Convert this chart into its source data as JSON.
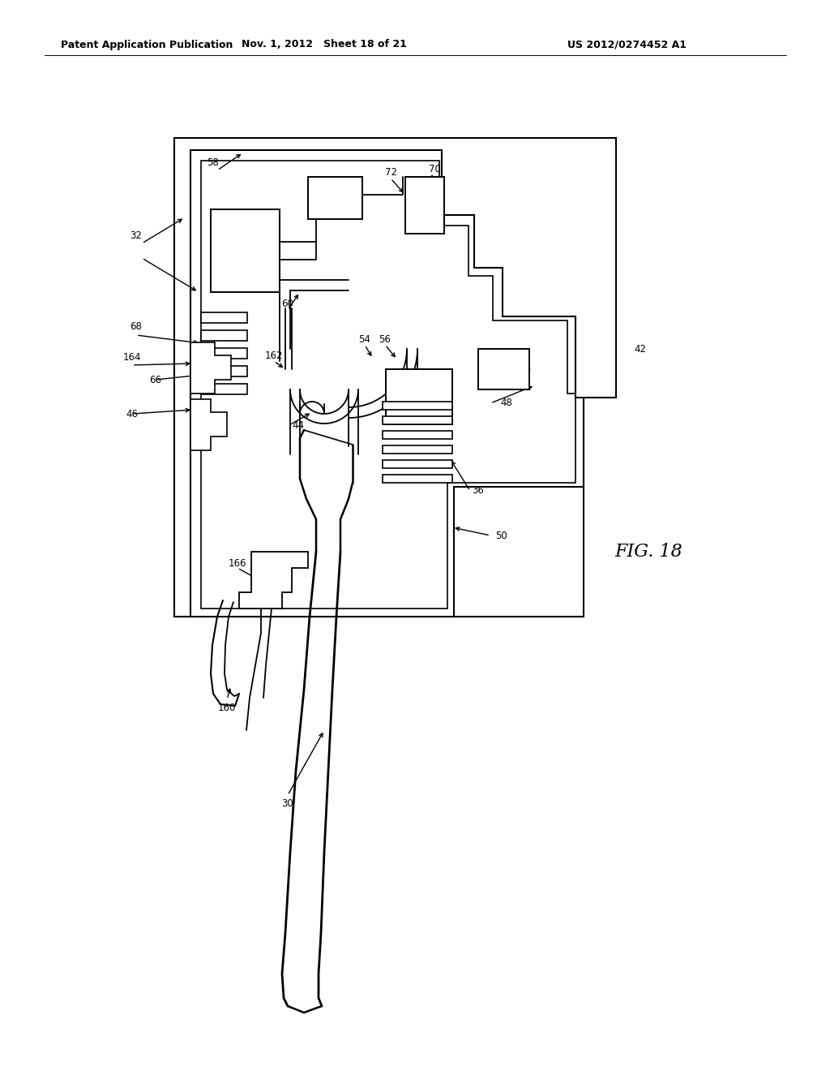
{
  "bg_color": "#ffffff",
  "lc": "#000000",
  "header_left": "Patent Application Publication",
  "header_mid": "Nov. 1, 2012   Sheet 18 of 21",
  "header_right": "US 2012/0274452 A1",
  "fig_label": "FIG. 18"
}
